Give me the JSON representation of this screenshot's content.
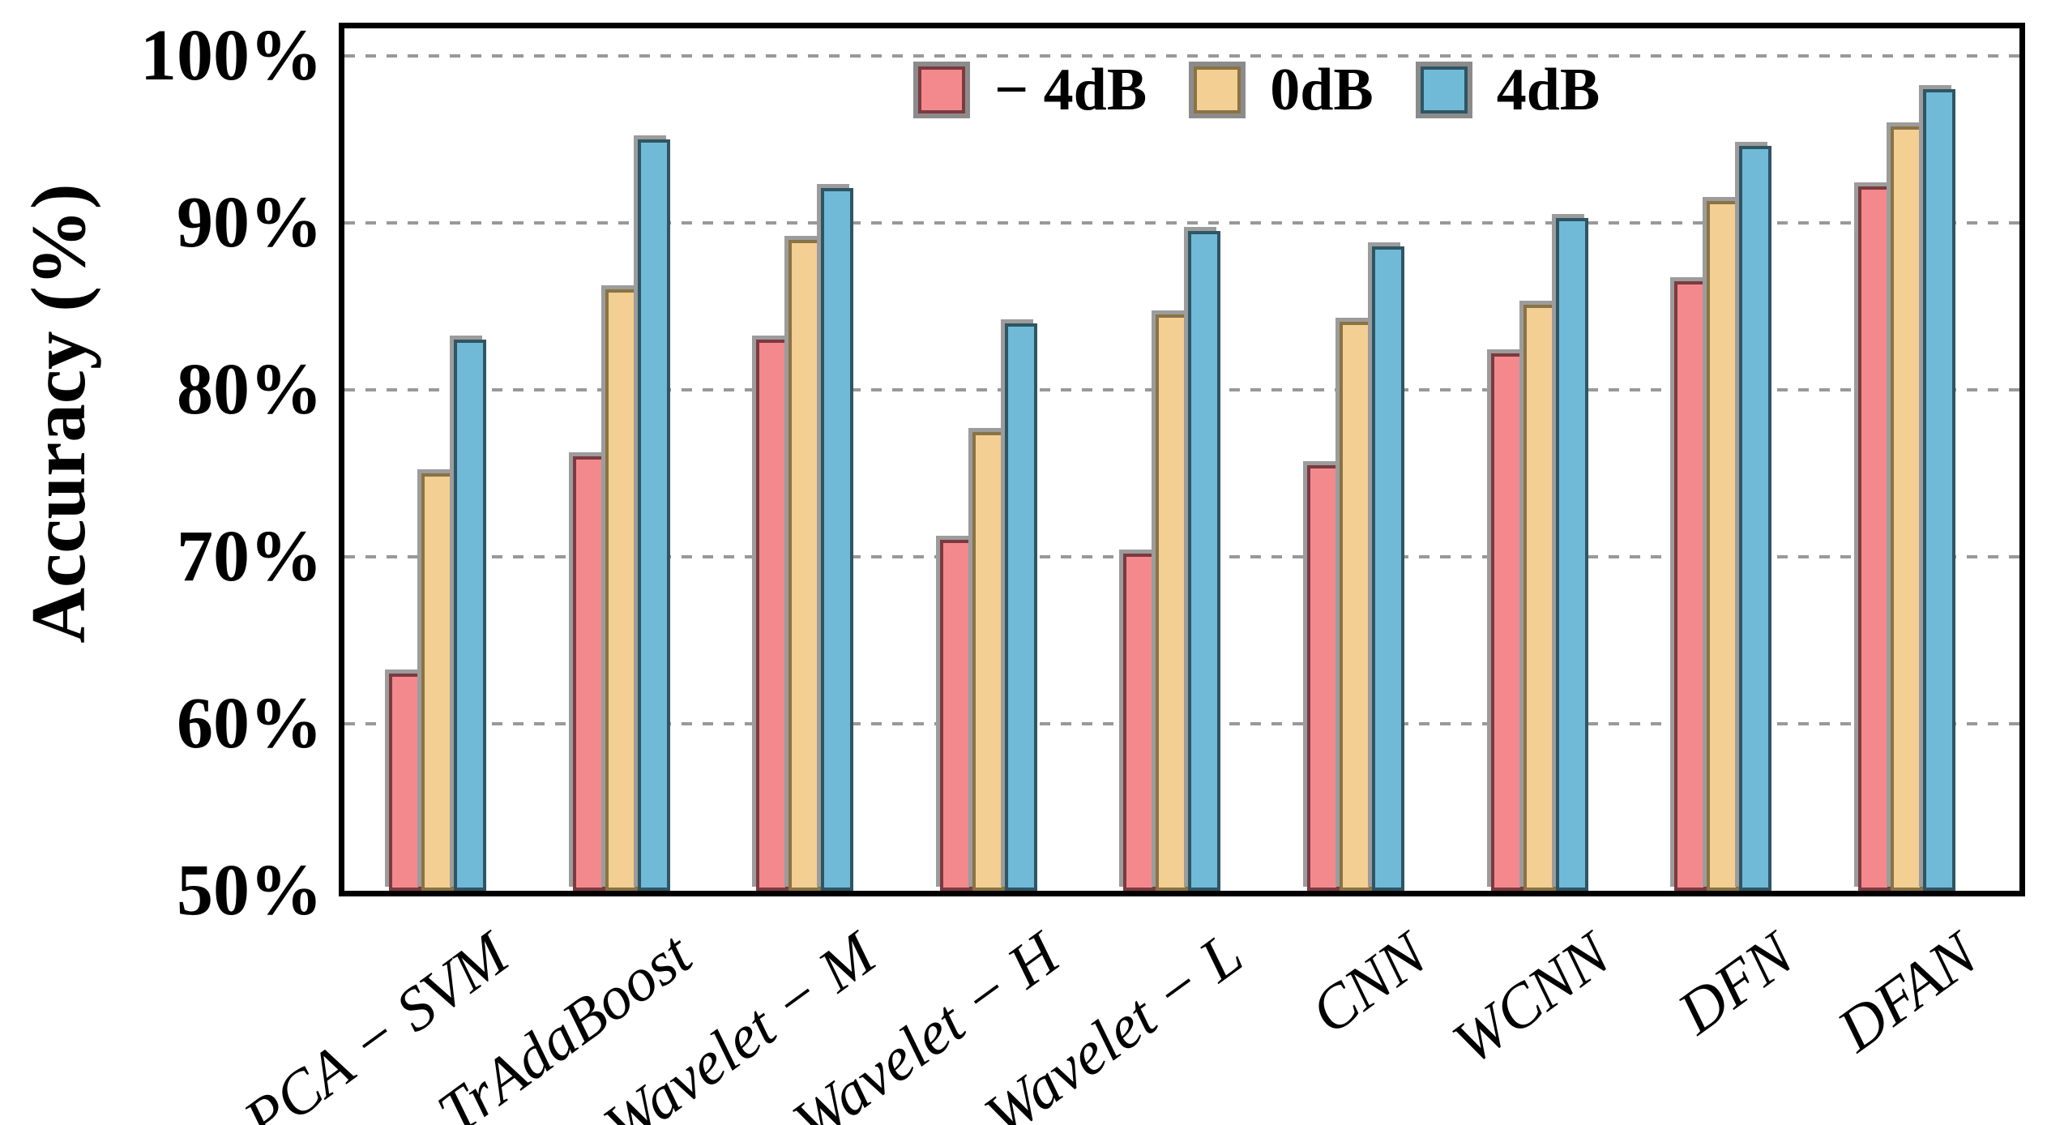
{
  "figure": {
    "background": "#ffffff"
  },
  "chart_data": {
    "type": "bar",
    "title": "",
    "xlabel": "",
    "ylabel": "Accuracy (%)",
    "ylim": [
      50,
      100
    ],
    "grid": {
      "show": true,
      "style": "dashed",
      "orientation": "horizontal",
      "color": "#999999"
    },
    "legend_position": "upper center inside",
    "axis_color": "#000000",
    "shadow_color": "#9c9c9c",
    "legend_swatch_border": "#8b8b8b",
    "yticks": [
      {
        "value": 100,
        "label": "100%"
      },
      {
        "value": 90,
        "label": "90%"
      },
      {
        "value": 80,
        "label": "80%"
      },
      {
        "value": 70,
        "label": "70%"
      },
      {
        "value": 60,
        "label": "60%"
      },
      {
        "value": 50,
        "label": "50%"
      }
    ],
    "categories": [
      "PCA − SVM",
      "TrAdaBoost",
      "Wavelet − M",
      "Wavelet − H",
      "Wavelet − L",
      "CNN",
      "WCNN",
      "DFN",
      "DFAN"
    ],
    "series": [
      {
        "name": "− 4dB",
        "fill": "#f4898d",
        "edge": "#7b3a40",
        "values": [
          63,
          76,
          83,
          71,
          70.2,
          75.5,
          82.2,
          86.5,
          92.2
        ]
      },
      {
        "name": "0dB",
        "fill": "#f3cf94",
        "edge": "#8a7344",
        "values": [
          75,
          86,
          89,
          77.5,
          84.5,
          84.1,
          85.1,
          91.3,
          95.8
        ]
      },
      {
        "name": "4dB",
        "fill": "#70bad8",
        "edge": "#2f5563",
        "values": [
          83,
          95,
          92.1,
          84,
          89.5,
          88.6,
          90.3,
          94.6,
          98
        ]
      }
    ]
  }
}
